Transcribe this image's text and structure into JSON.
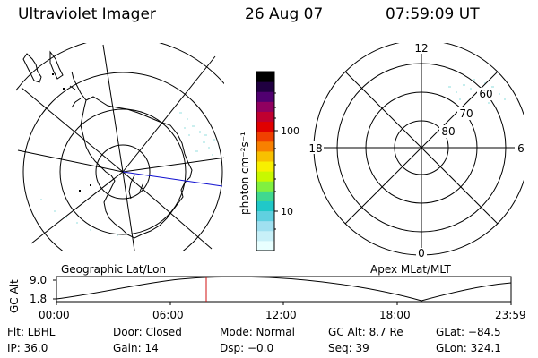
{
  "header": {
    "title": "Ultraviolet Imager",
    "date": "26 Aug 07",
    "time": "07:59:09 UT"
  },
  "left_panel": {
    "caption": "Geographic Lat/Lon"
  },
  "right_panel": {
    "caption": "Apex MLat/MLT",
    "clock_labels": {
      "top": "12",
      "left": "18",
      "right": "6",
      "bottom": "0"
    },
    "lat_labels": [
      "60",
      "70",
      "80"
    ]
  },
  "colorbar": {
    "unit_label": "photon cm⁻²s⁻¹",
    "ticks": [
      "100",
      "10"
    ],
    "colors": [
      "#e8ffff",
      "#c8f0f8",
      "#a0e0f0",
      "#60d0e0",
      "#20c8c8",
      "#40d890",
      "#80f040",
      "#c8f800",
      "#f8f000",
      "#f8c000",
      "#f88000",
      "#f04000",
      "#e00000",
      "#c00030",
      "#900060",
      "#500070",
      "#200040",
      "#000000"
    ]
  },
  "altitude_plot": {
    "ylabel": "GC Alt",
    "y_ticks": [
      "9.0",
      "1.8"
    ],
    "x_ticks": [
      "00:00",
      "06:00",
      "12:00",
      "18:00",
      "23:59"
    ]
  },
  "metadata": {
    "row1": [
      "Flt: LBHL",
      "Door: Closed",
      "Mode: Normal",
      "GC Alt: 8.7 Re",
      "GLat: −84.5"
    ],
    "row2": [
      "IP: 36.0",
      "Gain: 14",
      "Dsp:   −0.0",
      "Seq: 39",
      "GLon: 324.1"
    ]
  }
}
